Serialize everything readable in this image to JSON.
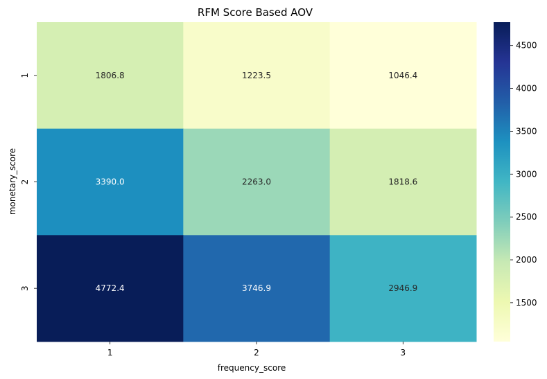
{
  "chart_data": {
    "type": "heatmap",
    "title": "RFM Score Based AOV",
    "xlabel": "frequency_score",
    "ylabel": "monetary_score",
    "x_categories": [
      "1",
      "2",
      "3"
    ],
    "y_categories": [
      "1",
      "2",
      "3"
    ],
    "values": [
      [
        1806.8,
        1223.5,
        1046.4
      ],
      [
        3390.0,
        2263.0,
        1818.6
      ],
      [
        4772.4,
        3746.9,
        2946.9
      ]
    ],
    "value_labels": [
      [
        "1806.8",
        "1223.5",
        "1046.4"
      ],
      [
        "3390.0",
        "2263.0",
        "1818.6"
      ],
      [
        "4772.4",
        "3746.9",
        "2946.9"
      ]
    ],
    "colormap": "YlGnBu",
    "color_range": [
      1046.4,
      4772.4
    ],
    "colorbar_ticks": [
      1500,
      2000,
      2500,
      3000,
      3500,
      4000,
      4500
    ],
    "colorbar_tick_labels": [
      "1500",
      "2000",
      "2500",
      "3000",
      "3500",
      "4000",
      "4500"
    ],
    "colormap_stops": [
      "#ffffd9",
      "#edf8b1",
      "#c7e9b4",
      "#7fcdbb",
      "#41b6c4",
      "#1d91c0",
      "#225ea8",
      "#253494",
      "#081d58"
    ],
    "grid": false
  }
}
